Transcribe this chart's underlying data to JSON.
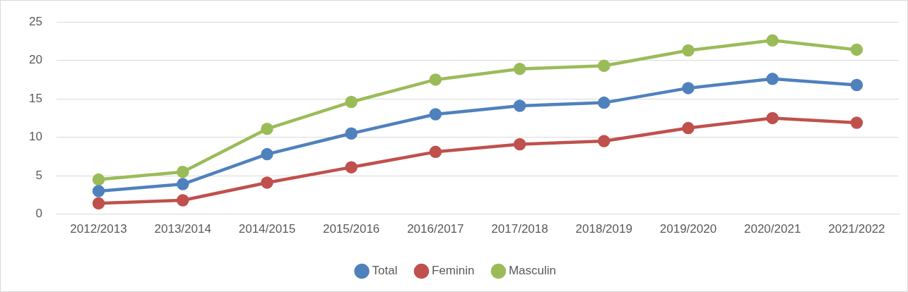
{
  "chart_data": {
    "type": "line",
    "categories": [
      "2012/2013",
      "2013/2014",
      "2014/2015",
      "2015/2016",
      "2016/2017",
      "2017/2018",
      "2018/2019",
      "2019/2020",
      "2020/2021",
      "2021/2022"
    ],
    "series": [
      {
        "name": "Total",
        "color": "#4f81bd",
        "values": [
          3.0,
          3.9,
          7.8,
          10.5,
          13.0,
          14.1,
          14.5,
          16.4,
          17.6,
          16.8
        ]
      },
      {
        "name": "Feminin",
        "color": "#c0504d",
        "values": [
          1.4,
          1.8,
          4.1,
          6.1,
          8.1,
          9.1,
          9.5,
          11.2,
          12.5,
          11.9
        ]
      },
      {
        "name": "Masculin",
        "color": "#9bbb59",
        "values": [
          4.5,
          5.5,
          11.1,
          14.6,
          17.5,
          18.9,
          19.3,
          21.3,
          22.6,
          21.4
        ]
      }
    ],
    "ylim": [
      0,
      25
    ],
    "yticks": [
      0,
      5,
      10,
      15,
      20,
      25
    ],
    "grid": "y",
    "legend": "bottom",
    "marker": "circle",
    "line_style": "solid"
  }
}
